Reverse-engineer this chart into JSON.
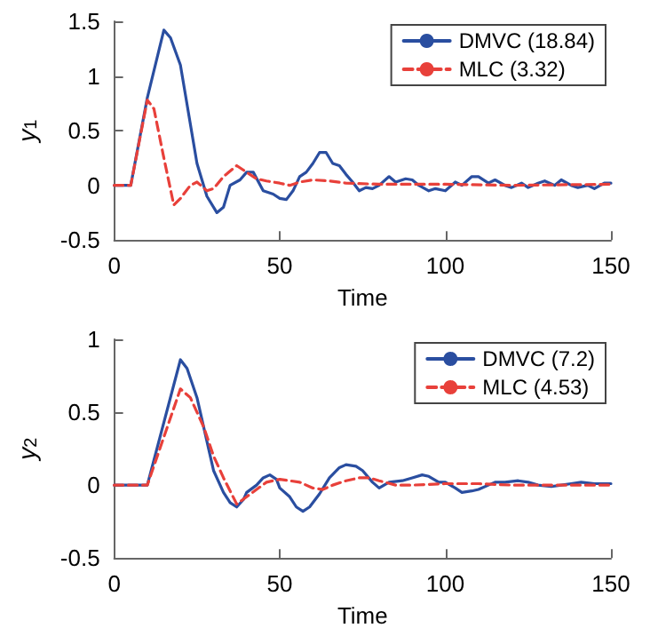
{
  "chart_data": [
    {
      "type": "line",
      "xlabel": "Time",
      "ylabel": "y$_{1}$",
      "xlim": [
        0,
        150
      ],
      "xticks": [
        0,
        50,
        100,
        150
      ],
      "ylim": [
        -0.5,
        1.5
      ],
      "yticks": [
        -0.5,
        0,
        0.5,
        1,
        1.5
      ],
      "grid": false,
      "legend": "top right",
      "marker": "none",
      "series": [
        {
          "name": "DMVC (18.84)",
          "color": "#2a4ea0",
          "line_style": "solid",
          "x": [
            0,
            5,
            10,
            15,
            17,
            20,
            25,
            28,
            31,
            33,
            35,
            38,
            40,
            42,
            45,
            48,
            50,
            52,
            54,
            56,
            58,
            60,
            62,
            64,
            66,
            68,
            70,
            72,
            74,
            76,
            78,
            80,
            83,
            85,
            88,
            90,
            92,
            95,
            97,
            100,
            103,
            105,
            108,
            110,
            113,
            115,
            118,
            120,
            123,
            125,
            128,
            130,
            133,
            135,
            138,
            140,
            143,
            145,
            148,
            150
          ],
          "values": [
            0,
            0,
            0.8,
            1.42,
            1.35,
            1.1,
            0.2,
            -0.1,
            -0.25,
            -0.2,
            0,
            0.05,
            0.12,
            0.12,
            -0.05,
            -0.08,
            -0.12,
            -0.13,
            -0.05,
            0.08,
            0.12,
            0.2,
            0.3,
            0.3,
            0.2,
            0.18,
            0.1,
            0.03,
            -0.05,
            -0.02,
            -0.03,
            0,
            0.08,
            0.03,
            0.06,
            0.05,
            0,
            -0.05,
            -0.03,
            -0.05,
            0.03,
            0,
            0.08,
            0.08,
            0.02,
            0.05,
            0,
            -0.02,
            0.02,
            -0.02,
            0.02,
            0.04,
            0,
            0.05,
            0,
            -0.02,
            0,
            -0.03,
            0.02,
            0.02
          ]
        },
        {
          "name": "MLC (3.32)",
          "color": "#e8403a",
          "line_style": "dashed",
          "x": [
            0,
            5,
            10,
            12,
            15,
            18,
            20,
            23,
            25,
            28,
            30,
            33,
            37,
            40,
            43,
            46,
            50,
            53,
            56,
            60,
            65,
            70,
            80,
            90,
            100,
            120,
            150
          ],
          "values": [
            0,
            0,
            0.78,
            0.7,
            0.25,
            -0.18,
            -0.12,
            0,
            0.03,
            -0.05,
            -0.03,
            0.08,
            0.18,
            0.12,
            0.06,
            0.04,
            0.02,
            0,
            0.03,
            0.05,
            0.04,
            0.02,
            0.01,
            0.01,
            0.01,
            0,
            0.01
          ]
        }
      ]
    },
    {
      "type": "line",
      "xlabel": "Time",
      "ylabel": "y$_{2}$",
      "xlim": [
        0,
        150
      ],
      "xticks": [
        0,
        50,
        100,
        150
      ],
      "ylim": [
        -0.5,
        1
      ],
      "yticks": [
        -0.5,
        0,
        0.5,
        1
      ],
      "grid": false,
      "legend": "top right",
      "marker": "none",
      "series": [
        {
          "name": "DMVC (7.2)",
          "color": "#2a4ea0",
          "line_style": "solid",
          "x": [
            0,
            10,
            20,
            22,
            25,
            28,
            30,
            33,
            35,
            37,
            39,
            40,
            43,
            45,
            47,
            49,
            50,
            53,
            55,
            57,
            59,
            62,
            65,
            68,
            70,
            73,
            75,
            78,
            80,
            83,
            87,
            90,
            93,
            95,
            98,
            100,
            103,
            105,
            108,
            110,
            113,
            115,
            118,
            122,
            125,
            128,
            132,
            135,
            138,
            141,
            145,
            150
          ],
          "values": [
            0,
            0,
            0.86,
            0.8,
            0.6,
            0.3,
            0.1,
            -0.05,
            -0.12,
            -0.15,
            -0.1,
            -0.05,
            0,
            0.05,
            0.07,
            0.04,
            -0.02,
            -0.08,
            -0.15,
            -0.18,
            -0.15,
            -0.06,
            0.05,
            0.12,
            0.14,
            0.13,
            0.1,
            0.02,
            -0.02,
            0.02,
            0.03,
            0.05,
            0.07,
            0.06,
            0.02,
            0.02,
            -0.02,
            -0.05,
            -0.04,
            -0.03,
            0,
            0.02,
            0.02,
            0.03,
            0.02,
            0,
            -0.01,
            0,
            0.01,
            0.02,
            0.01,
            0.01
          ]
        },
        {
          "name": "MLC (4.53)",
          "color": "#e8403a",
          "line_style": "dashed",
          "x": [
            0,
            10,
            20,
            23,
            27,
            30,
            33,
            37,
            40,
            43,
            46,
            50,
            53,
            56,
            60,
            63,
            66,
            70,
            74,
            77,
            80,
            85,
            90,
            100,
            110,
            120,
            130,
            150
          ],
          "values": [
            0,
            0,
            0.66,
            0.6,
            0.4,
            0.2,
            0.05,
            -0.13,
            -0.08,
            -0.03,
            0.02,
            0.04,
            0.03,
            0.02,
            -0.02,
            -0.03,
            0,
            0.03,
            0.05,
            0.05,
            0.03,
            0,
            0,
            0.01,
            0.01,
            0,
            0,
            0
          ]
        }
      ]
    }
  ]
}
